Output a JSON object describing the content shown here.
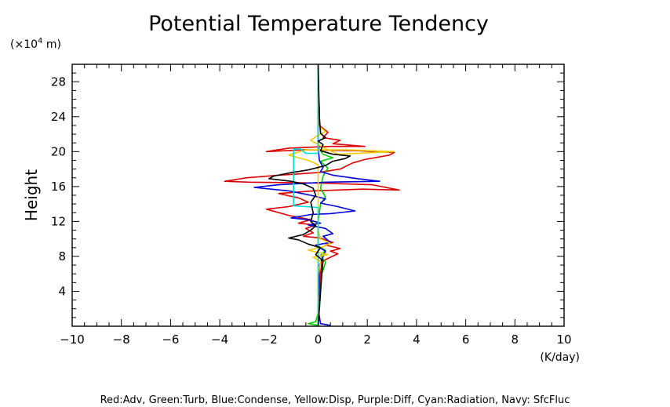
{
  "chart_data": {
    "type": "line",
    "title": "Potential Temperature Tendency",
    "xlabel": "(K/day)",
    "ylabel": "Height",
    "y_unit_label_prefix": "(×10",
    "y_unit_label_exp": "4",
    "y_unit_label_suffix": " m)",
    "xlim": [
      -10,
      10
    ],
    "ylim": [
      0,
      30
    ],
    "xticks": [
      -10,
      -8,
      -6,
      -4,
      -2,
      0,
      2,
      4,
      6,
      8,
      10
    ],
    "xtick_labels": [
      "−10",
      "−8",
      "−6",
      "−4",
      "−2",
      "0",
      "2",
      "4",
      "6",
      "8",
      "10"
    ],
    "yticks": [
      4,
      8,
      12,
      16,
      20,
      24,
      28
    ],
    "ytick_labels": [
      "4",
      "8",
      "12",
      "16",
      "20",
      "24",
      "28"
    ],
    "grid": false,
    "legend_text": "Red:Adv, Green:Turb, Blue:Condense, Yellow:Disp, Purple:Diff, Cyan:Radiation, Navy: SfcFluc",
    "series": [
      {
        "color": "#dd0000",
        "points": [
          [
            0,
            0.1
          ],
          [
            0,
            2
          ],
          [
            0.05,
            4
          ],
          [
            0.1,
            6
          ],
          [
            0.15,
            7.4
          ],
          [
            0.5,
            7.9
          ],
          [
            0.8,
            8.3
          ],
          [
            0.5,
            8.6
          ],
          [
            0.9,
            8.9
          ],
          [
            0.3,
            9.3
          ],
          [
            0.6,
            9.6
          ],
          [
            0.1,
            10.1
          ],
          [
            -0.6,
            10.3
          ],
          [
            -0.2,
            10.7
          ],
          [
            -0.5,
            11.2
          ],
          [
            -0.1,
            11.6
          ],
          [
            -0.8,
            11.8
          ],
          [
            -0.3,
            12.2
          ],
          [
            -1.2,
            12.7
          ],
          [
            -2.1,
            13.4
          ],
          [
            -1.2,
            13.7
          ],
          [
            -0.4,
            14.2
          ],
          [
            -0.8,
            14.7
          ],
          [
            -1.6,
            15.2
          ],
          [
            -0.2,
            15.5
          ],
          [
            1.8,
            15.7
          ],
          [
            3.3,
            15.6
          ],
          [
            2.2,
            16.2
          ],
          [
            0,
            16.4
          ],
          [
            -2.8,
            16.5
          ],
          [
            -3.8,
            16.6
          ],
          [
            -2.9,
            17.0
          ],
          [
            -1.6,
            17.3
          ],
          [
            0,
            17.6
          ],
          [
            0.9,
            18.0
          ],
          [
            1.4,
            18.7
          ],
          [
            1.9,
            19.1
          ],
          [
            2.9,
            19.6
          ],
          [
            3.1,
            19.9
          ],
          [
            1.6,
            20.1
          ],
          [
            -0.6,
            20.2
          ],
          [
            -2.1,
            20.0
          ],
          [
            -1.2,
            20.4
          ],
          [
            0.5,
            20.6
          ],
          [
            1.9,
            20.6
          ],
          [
            0.6,
            20.9
          ],
          [
            0.9,
            21.3
          ],
          [
            0.2,
            21.6
          ],
          [
            0.4,
            22.2
          ],
          [
            0.05,
            23
          ],
          [
            0.05,
            25
          ],
          [
            0,
            27
          ],
          [
            0,
            29.9
          ]
        ]
      },
      {
        "color": "#00cc00",
        "points": [
          [
            0,
            0.1
          ],
          [
            -0.4,
            0.3
          ],
          [
            -0.1,
            0.5
          ],
          [
            0.05,
            2
          ],
          [
            0.1,
            4
          ],
          [
            0.15,
            6
          ],
          [
            0.3,
            7.3
          ],
          [
            0.1,
            8.1
          ],
          [
            0.3,
            8.7
          ],
          [
            0,
            9.2
          ],
          [
            0,
            12
          ],
          [
            0.1,
            14
          ],
          [
            0.3,
            14.8
          ],
          [
            0.1,
            15.8
          ],
          [
            0.2,
            17.2
          ],
          [
            0.4,
            18.1
          ],
          [
            0.1,
            18.9
          ],
          [
            0.6,
            19.3
          ],
          [
            0.2,
            19.7
          ],
          [
            0,
            20.5
          ],
          [
            0,
            29.9
          ]
        ]
      },
      {
        "color": "#0000dd",
        "points": [
          [
            0.5,
            0.1
          ],
          [
            0.1,
            0.3
          ],
          [
            0,
            2
          ],
          [
            0.05,
            7
          ],
          [
            0.3,
            8.6
          ],
          [
            -0.1,
            9.3
          ],
          [
            0.5,
            9.6
          ],
          [
            0.2,
            10.3
          ],
          [
            0.6,
            10.6
          ],
          [
            0.3,
            11.2
          ],
          [
            -0.4,
            11.6
          ],
          [
            0.1,
            11.8
          ],
          [
            -0.4,
            12.2
          ],
          [
            -1.1,
            12.4
          ],
          [
            -0.3,
            12.8
          ],
          [
            0.5,
            12.9
          ],
          [
            1.5,
            13.2
          ],
          [
            0.8,
            13.7
          ],
          [
            0.1,
            14.1
          ],
          [
            0.3,
            14.6
          ],
          [
            -0.3,
            15.0
          ],
          [
            -1.2,
            15.5
          ],
          [
            -2.6,
            15.9
          ],
          [
            -1.6,
            16.2
          ],
          [
            0.3,
            16.5
          ],
          [
            2.5,
            16.6
          ],
          [
            1.6,
            16.9
          ],
          [
            0.6,
            17.3
          ],
          [
            0.1,
            17.7
          ],
          [
            0.2,
            18.2
          ],
          [
            0.05,
            19
          ],
          [
            0,
            20.5
          ],
          [
            0,
            29.9
          ]
        ]
      },
      {
        "color": "#eecc00",
        "points": [
          [
            0,
            0.1
          ],
          [
            0,
            6
          ],
          [
            0.1,
            7.4
          ],
          [
            -0.2,
            7.9
          ],
          [
            0.4,
            8.2
          ],
          [
            -0.4,
            8.7
          ],
          [
            0.2,
            9.1
          ],
          [
            0.5,
            9.5
          ],
          [
            0.1,
            10.0
          ],
          [
            0,
            11
          ],
          [
            0,
            18.5
          ],
          [
            -0.4,
            19.0
          ],
          [
            -1.2,
            19.6
          ],
          [
            -0.5,
            20.2
          ],
          [
            1.1,
            20.2
          ],
          [
            3.1,
            20.0
          ],
          [
            0.8,
            19.7
          ],
          [
            0.2,
            20.5
          ],
          [
            -0.3,
            21.3
          ],
          [
            0,
            21.9
          ],
          [
            0.3,
            22.3
          ],
          [
            0,
            23
          ],
          [
            0,
            29.9
          ]
        ]
      },
      {
        "color": "#00dddd",
        "points": [
          [
            0,
            0.1
          ],
          [
            0,
            13.6
          ],
          [
            -1.0,
            13.8
          ],
          [
            -1.0,
            16.6
          ],
          [
            -1.0,
            20.3
          ],
          [
            -0.7,
            20.3
          ],
          [
            -0.5,
            19.8
          ],
          [
            0,
            19.8
          ],
          [
            0,
            29.9
          ]
        ]
      },
      {
        "color": "#000000",
        "points": [
          [
            0,
            0.1
          ],
          [
            0.05,
            2
          ],
          [
            0.1,
            4
          ],
          [
            0.15,
            6
          ],
          [
            0.2,
            7.5
          ],
          [
            -0.1,
            8.2
          ],
          [
            0.1,
            9.0
          ],
          [
            -0.4,
            9.4
          ],
          [
            -0.8,
            9.9
          ],
          [
            -1.2,
            10.1
          ],
          [
            -0.6,
            10.5
          ],
          [
            -0.3,
            11.0
          ],
          [
            -0.1,
            11.5
          ],
          [
            -0.3,
            12.0
          ],
          [
            -0.2,
            13.0
          ],
          [
            -0.3,
            14.2
          ],
          [
            -0.1,
            15.0
          ],
          [
            -0.2,
            15.8
          ],
          [
            -0.6,
            16.3
          ],
          [
            -1.1,
            16.6
          ],
          [
            -2.0,
            16.9
          ],
          [
            -1.8,
            17.2
          ],
          [
            -1.1,
            17.6
          ],
          [
            -0.4,
            17.9
          ],
          [
            0.3,
            18.4
          ],
          [
            0.6,
            18.9
          ],
          [
            1.1,
            19.2
          ],
          [
            1.3,
            19.5
          ],
          [
            0.6,
            19.7
          ],
          [
            0.1,
            20.1
          ],
          [
            0.2,
            20.8
          ],
          [
            0,
            21.2
          ],
          [
            0.3,
            21.6
          ],
          [
            0.1,
            22.1
          ],
          [
            0.05,
            24
          ],
          [
            0,
            29.9
          ]
        ]
      }
    ]
  }
}
